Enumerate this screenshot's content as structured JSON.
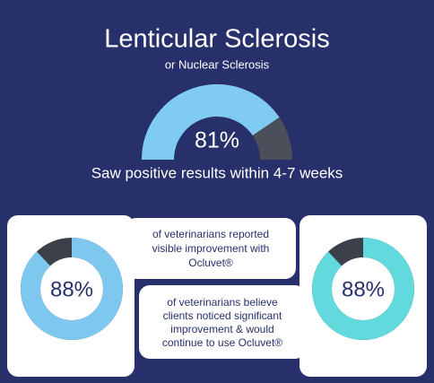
{
  "chart_data": [
    {
      "type": "gauge",
      "title": "Lenticular Sclerosis",
      "subtitle": "or Nuclear Sclerosis",
      "values": [
        81
      ],
      "value_labels": [
        "81%"
      ],
      "caption": "Saw positive results within 4-7 weeks",
      "color": "#7fcbf1",
      "track_color": "#4b4f59"
    },
    {
      "type": "donut",
      "values": [
        88
      ],
      "value_labels": [
        "88%"
      ],
      "caption": [
        "of veterinarians reported",
        "visible improvement with",
        "Ocluvet®"
      ],
      "color": "#7ec8ef",
      "track_color": "#3c404a"
    },
    {
      "type": "donut",
      "values": [
        88
      ],
      "value_labels": [
        "88%"
      ],
      "caption": [
        "of veterinarians believe",
        "clients noticed significant",
        "improvement & would",
        "continue to use Ocluvet®"
      ],
      "color": "#62d9dd",
      "track_color": "#3c404a"
    }
  ]
}
